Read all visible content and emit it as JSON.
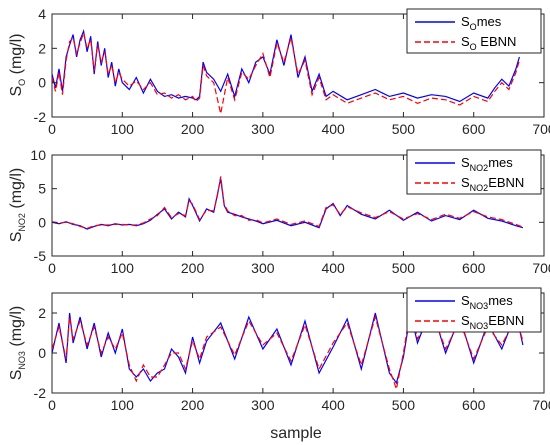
{
  "chart_data": [
    {
      "type": "line",
      "ylabel": {
        "main": "S",
        "sub": "O",
        "unit": " (mg/l)"
      },
      "xlim": [
        0,
        700
      ],
      "ylim": [
        -2,
        4
      ],
      "xticks": [
        "0",
        "100",
        "200",
        "300",
        "400",
        "500",
        "600",
        "700"
      ],
      "yticks": [
        "-2",
        "0",
        "2",
        "4"
      ],
      "legend_position": "top-right",
      "series": [
        {
          "name": {
            "main": "S",
            "sub": "O",
            "suffix": "mes"
          },
          "color": "#0000ff",
          "style": "solid",
          "x": [
            0,
            5,
            10,
            15,
            20,
            25,
            30,
            35,
            40,
            45,
            50,
            55,
            60,
            65,
            70,
            75,
            80,
            85,
            90,
            95,
            100,
            110,
            120,
            130,
            140,
            150,
            160,
            170,
            180,
            190,
            200,
            205,
            210,
            215,
            220,
            230,
            240,
            250,
            260,
            270,
            280,
            290,
            300,
            310,
            320,
            330,
            340,
            350,
            360,
            370,
            380,
            390,
            400,
            420,
            440,
            460,
            480,
            500,
            520,
            540,
            560,
            580,
            600,
            620,
            630,
            640,
            650,
            660,
            665
          ],
          "y": [
            0.5,
            -0.3,
            0.8,
            -0.5,
            1.5,
            2.2,
            2.8,
            1.5,
            2.5,
            3.0,
            1.8,
            2.7,
            0.5,
            2.4,
            1.0,
            2.0,
            0.3,
            1.2,
            -0.2,
            0.8,
            0.0,
            -0.4,
            0.3,
            -0.6,
            0.2,
            -0.5,
            -0.8,
            -0.7,
            -0.9,
            -0.8,
            -0.9,
            -1.0,
            -0.8,
            1.2,
            0.6,
            0.2,
            -0.5,
            0.5,
            -0.8,
            0.8,
            0.0,
            1.2,
            1.5,
            0.5,
            2.5,
            1.0,
            2.8,
            0.3,
            1.5,
            -0.5,
            0.5,
            -0.8,
            -0.5,
            -1.0,
            -0.7,
            -0.4,
            -0.8,
            -0.6,
            -0.9,
            -0.7,
            -0.8,
            -1.1,
            -0.6,
            -0.9,
            -0.3,
            0.2,
            -0.2,
            0.8,
            1.5
          ]
        },
        {
          "name": {
            "main": "S",
            "sub": "O",
            "suffix": " EBNN"
          },
          "color": "#ff0000",
          "style": "dashed",
          "x": [
            0,
            5,
            10,
            15,
            20,
            25,
            30,
            35,
            40,
            45,
            50,
            55,
            60,
            65,
            70,
            75,
            80,
            85,
            90,
            95,
            100,
            110,
            120,
            130,
            140,
            150,
            160,
            170,
            180,
            190,
            200,
            205,
            210,
            215,
            220,
            230,
            240,
            250,
            260,
            270,
            280,
            290,
            300,
            310,
            320,
            330,
            340,
            350,
            360,
            370,
            380,
            390,
            400,
            420,
            440,
            460,
            480,
            500,
            520,
            540,
            560,
            580,
            600,
            620,
            630,
            640,
            650,
            660,
            665
          ],
          "y": [
            0.3,
            -0.5,
            0.6,
            -0.7,
            1.3,
            2.4,
            2.6,
            1.7,
            2.3,
            2.9,
            2.0,
            2.5,
            0.7,
            2.2,
            1.2,
            1.8,
            0.5,
            1.0,
            0.0,
            0.6,
            0.2,
            -0.2,
            0.1,
            -0.4,
            0.0,
            -0.7,
            -0.6,
            -0.9,
            -0.7,
            -1.0,
            -0.8,
            -1.1,
            -0.9,
            1.0,
            0.4,
            0.0,
            -1.8,
            0.3,
            -1.0,
            0.6,
            0.2,
            1.0,
            1.7,
            0.3,
            2.3,
            1.2,
            2.6,
            0.5,
            1.3,
            -0.7,
            0.3,
            -1.0,
            -0.7,
            -1.2,
            -0.9,
            -0.6,
            -1.0,
            -0.8,
            -1.2,
            -0.9,
            -1.0,
            -1.3,
            -0.8,
            -1.1,
            -0.5,
            0.0,
            -0.4,
            0.6,
            1.3
          ]
        }
      ]
    },
    {
      "type": "line",
      "ylabel": {
        "main": "S",
        "sub": "NO2",
        "unit": " (mg/l)"
      },
      "xlim": [
        0,
        700
      ],
      "ylim": [
        -5,
        10
      ],
      "xticks": [
        "0",
        "100",
        "200",
        "300",
        "400",
        "500",
        "600",
        "700"
      ],
      "yticks": [
        "-5",
        "0",
        "5",
        "10"
      ],
      "legend_position": "top-right",
      "series": [
        {
          "name": {
            "main": "S",
            "sub": "NO2",
            "suffix": "mes"
          },
          "color": "#0000ff",
          "style": "solid",
          "x": [
            0,
            10,
            20,
            30,
            40,
            50,
            60,
            70,
            80,
            90,
            100,
            110,
            120,
            130,
            140,
            150,
            160,
            170,
            180,
            190,
            195,
            200,
            210,
            220,
            230,
            235,
            240,
            245,
            250,
            260,
            270,
            280,
            290,
            300,
            320,
            340,
            360,
            380,
            390,
            400,
            410,
            420,
            440,
            460,
            480,
            500,
            520,
            540,
            560,
            580,
            600,
            620,
            640,
            660,
            670
          ],
          "y": [
            0.0,
            -0.2,
            0.1,
            -0.3,
            -0.5,
            -1.0,
            -0.6,
            -0.3,
            -0.5,
            -0.2,
            -0.4,
            -0.3,
            -0.5,
            -0.2,
            0.3,
            1.2,
            2.0,
            0.5,
            1.5,
            0.8,
            3.5,
            2.5,
            0.2,
            2.0,
            1.5,
            4.0,
            6.5,
            2.5,
            1.5,
            1.2,
            0.8,
            0.5,
            0.2,
            -0.2,
            0.3,
            -0.5,
            0.0,
            -0.8,
            2.0,
            2.8,
            1.0,
            2.5,
            1.2,
            0.5,
            1.8,
            0.3,
            1.5,
            0.2,
            1.0,
            0.4,
            1.8,
            0.6,
            0.2,
            -0.5,
            -0.8
          ]
        },
        {
          "name": {
            "main": "S",
            "sub": "NO2",
            "suffix": "EBNN"
          },
          "color": "#ff0000",
          "style": "dashed",
          "x": [
            0,
            10,
            20,
            30,
            40,
            50,
            60,
            70,
            80,
            90,
            100,
            110,
            120,
            130,
            140,
            150,
            160,
            170,
            180,
            190,
            195,
            200,
            210,
            220,
            230,
            235,
            240,
            245,
            250,
            260,
            270,
            280,
            290,
            300,
            320,
            340,
            360,
            380,
            390,
            400,
            410,
            420,
            440,
            460,
            480,
            500,
            520,
            540,
            560,
            580,
            600,
            620,
            640,
            660,
            670
          ],
          "y": [
            0.1,
            -0.1,
            0.0,
            -0.2,
            -0.6,
            -0.9,
            -0.5,
            -0.4,
            -0.4,
            -0.3,
            -0.3,
            -0.4,
            -0.4,
            -0.1,
            0.5,
            1.0,
            2.2,
            0.7,
            1.3,
            1.0,
            3.2,
            2.7,
            0.4,
            1.8,
            1.7,
            3.8,
            6.8,
            2.7,
            1.7,
            1.0,
            1.0,
            0.3,
            0.4,
            -0.1,
            0.5,
            -0.3,
            0.2,
            -0.6,
            2.2,
            2.6,
            1.2,
            2.3,
            1.4,
            0.7,
            1.6,
            0.5,
            1.3,
            0.4,
            1.2,
            0.6,
            1.6,
            0.8,
            0.4,
            -0.3,
            -0.7
          ]
        }
      ]
    },
    {
      "type": "line",
      "ylabel": {
        "main": "S",
        "sub": "NO3",
        "unit": " (mg/l)"
      },
      "xlabel": "sample",
      "xlim": [
        0,
        700
      ],
      "ylim": [
        -2,
        3
      ],
      "xticks": [
        "0",
        "100",
        "200",
        "300",
        "400",
        "500",
        "600",
        "700"
      ],
      "yticks": [
        "-2",
        "0",
        "2"
      ],
      "legend_position": "top-right",
      "series": [
        {
          "name": {
            "main": "S",
            "sub": "NO3",
            "suffix": "mes"
          },
          "color": "#0000ff",
          "style": "solid",
          "x": [
            0,
            10,
            20,
            25,
            30,
            40,
            50,
            60,
            70,
            80,
            90,
            100,
            110,
            120,
            130,
            140,
            150,
            160,
            170,
            180,
            190,
            200,
            210,
            220,
            240,
            260,
            280,
            300,
            320,
            340,
            360,
            380,
            400,
            420,
            440,
            460,
            480,
            490,
            500,
            510,
            520,
            540,
            560,
            580,
            600,
            620,
            640,
            660,
            670
          ],
          "y": [
            0.0,
            1.5,
            -0.5,
            2.0,
            0.5,
            1.8,
            0.2,
            1.5,
            -0.2,
            1.0,
            0.0,
            1.2,
            -0.8,
            -1.2,
            -0.8,
            -1.4,
            -1.0,
            -0.8,
            0.2,
            -0.2,
            -1.0,
            0.8,
            -0.5,
            0.6,
            1.5,
            -0.3,
            1.8,
            0.2,
            1.2,
            -0.6,
            1.6,
            -1.0,
            0.3,
            1.7,
            -0.8,
            2.0,
            -1.0,
            -1.5,
            -0.2,
            2.0,
            0.5,
            2.3,
            0.0,
            1.8,
            -0.5,
            1.5,
            0.2,
            2.0,
            0.4
          ]
        },
        {
          "name": {
            "main": "S",
            "sub": "NO3",
            "suffix": "EBNN"
          },
          "color": "#ff0000",
          "style": "dashed",
          "x": [
            0,
            10,
            20,
            25,
            30,
            40,
            50,
            60,
            70,
            80,
            90,
            100,
            110,
            120,
            130,
            140,
            150,
            160,
            170,
            180,
            190,
            200,
            210,
            220,
            240,
            260,
            280,
            300,
            320,
            340,
            360,
            380,
            400,
            420,
            440,
            460,
            480,
            490,
            500,
            510,
            520,
            540,
            560,
            580,
            600,
            620,
            640,
            660,
            670
          ],
          "y": [
            0.2,
            1.3,
            -0.3,
            1.8,
            0.7,
            1.6,
            0.4,
            1.3,
            0.0,
            0.8,
            0.2,
            1.0,
            -0.6,
            -1.4,
            -0.6,
            -1.2,
            -1.2,
            -0.6,
            0.0,
            0.0,
            -0.8,
            0.6,
            -0.3,
            0.8,
            1.3,
            -0.1,
            1.6,
            0.4,
            1.0,
            -0.4,
            1.4,
            -0.8,
            0.5,
            1.5,
            -0.6,
            1.8,
            -0.8,
            -1.8,
            0.0,
            2.2,
            0.7,
            2.1,
            0.2,
            1.6,
            -0.3,
            1.3,
            0.4,
            1.8,
            0.6
          ]
        }
      ]
    }
  ]
}
